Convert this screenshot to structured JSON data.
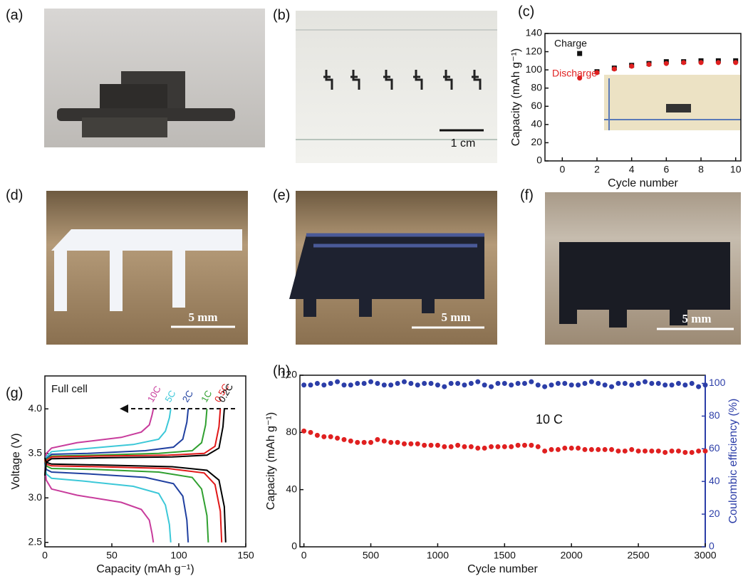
{
  "panels": [
    {
      "label": "(a)"
    },
    {
      "label": "(b)",
      "scale_bar": "1 cm"
    },
    {
      "label": "(d)",
      "scale_bar": "5 mm"
    },
    {
      "label": "(e)",
      "scale_bar": "5 mm"
    },
    {
      "label": "(f)",
      "scale_bar": "5 mm"
    }
  ],
  "chart_data": [
    {
      "type": "scatter",
      "panel": "(c)",
      "x_label": "Cycle number",
      "y_label": "Capacity (mAh g⁻¹)",
      "x": [
        1,
        2,
        3,
        4,
        5,
        6,
        7,
        8,
        9,
        10
      ],
      "series": [
        {
          "name": "Charge",
          "color": "#111111",
          "marker": "square",
          "values": [
            118,
            98,
            102,
            105,
            107,
            109,
            109,
            110,
            110,
            110
          ]
        },
        {
          "name": "Discharge",
          "color": "#e02020",
          "marker": "circle",
          "values": [
            91,
            97,
            101,
            104,
            106,
            107,
            108,
            108,
            108,
            108
          ]
        }
      ],
      "xlim": [
        -1,
        10.3
      ],
      "xticks": [
        0,
        2,
        4,
        6,
        8,
        10
      ],
      "ylim": [
        0,
        140
      ],
      "yticks": [
        0,
        20,
        40,
        60,
        80,
        100,
        120,
        140
      ]
    },
    {
      "type": "line",
      "panel": "(g)",
      "annotation": "Full cell",
      "x_label": "Capacity (mAh g⁻¹)",
      "y_label": "Voltage (V)",
      "series": [
        {
          "name": "10C",
          "color": "#c83c9c",
          "charge": {
            "x": [
              0,
              1,
              5,
              24,
              57,
              72,
              78,
              80,
              81
            ],
            "y": [
              3.25,
              3.5,
              3.56,
              3.62,
              3.68,
              3.74,
              3.82,
              3.93,
              4.0
            ]
          },
          "discharge": {
            "x": [
              0,
              1,
              5,
              24,
              57,
              72,
              78,
              80,
              81
            ],
            "y": [
              3.35,
              3.2,
              3.1,
              3.03,
              2.95,
              2.87,
              2.75,
              2.6,
              2.5
            ]
          }
        },
        {
          "name": "5C",
          "color": "#3cc8d8",
          "charge": {
            "x": [
              0,
              1,
              5,
              28,
              66,
              85,
              90,
              93,
              94
            ],
            "y": [
              3.25,
              3.46,
              3.52,
              3.55,
              3.6,
              3.66,
              3.75,
              3.9,
              4.0
            ]
          },
          "discharge": {
            "x": [
              0,
              1,
              5,
              28,
              66,
              85,
              90,
              93,
              94
            ],
            "y": [
              3.38,
              3.27,
              3.22,
              3.19,
              3.13,
              3.05,
              2.92,
              2.7,
              2.5
            ]
          }
        },
        {
          "name": "2C",
          "color": "#2040a0",
          "charge": {
            "x": [
              0,
              1,
              5,
              32,
              75,
              96,
              103,
              106,
              107
            ],
            "y": [
              3.25,
              3.44,
              3.49,
              3.5,
              3.53,
              3.57,
              3.66,
              3.85,
              4.0
            ]
          },
          "discharge": {
            "x": [
              0,
              1,
              5,
              32,
              75,
              96,
              103,
              106,
              107
            ],
            "y": [
              3.4,
              3.32,
              3.29,
              3.27,
              3.23,
              3.16,
              3.02,
              2.75,
              2.5
            ]
          }
        },
        {
          "name": "1C",
          "color": "#30a030",
          "charge": {
            "x": [
              0,
              1,
              5,
              37,
              85,
              110,
              117,
              120,
              121
            ],
            "y": [
              3.25,
              3.43,
              3.47,
              3.48,
              3.5,
              3.53,
              3.62,
              3.82,
              4.0
            ]
          },
          "discharge": {
            "x": [
              0,
              1,
              5,
              37,
              85,
              110,
              117,
              121,
              122
            ],
            "y": [
              3.42,
              3.36,
              3.33,
              3.32,
              3.29,
              3.23,
              3.1,
              2.8,
              2.5
            ]
          }
        },
        {
          "name": "0.5C",
          "color": "#e01818",
          "charge": {
            "x": [
              0,
              1,
              5,
              40,
              92,
              119,
              127,
              130,
              131
            ],
            "y": [
              3.25,
              3.42,
              3.46,
              3.47,
              3.48,
              3.5,
              3.58,
              3.8,
              4.0
            ]
          },
          "discharge": {
            "x": [
              0,
              1,
              5,
              40,
              92,
              119,
              127,
              131,
              132
            ],
            "y": [
              3.43,
              3.38,
              3.36,
              3.35,
              3.33,
              3.28,
              3.15,
              2.85,
              2.5
            ]
          }
        },
        {
          "name": "0.2C",
          "color": "#000000",
          "charge": {
            "x": [
              0,
              1,
              5,
              40,
              95,
              121,
              130,
              133,
              134
            ],
            "y": [
              3.25,
              3.4,
              3.44,
              3.45,
              3.46,
              3.48,
              3.56,
              3.8,
              4.0
            ]
          },
          "discharge": {
            "x": [
              0,
              1,
              5,
              40,
              95,
              121,
              130,
              134,
              135
            ],
            "y": [
              3.45,
              3.4,
              3.38,
              3.37,
              3.35,
              3.31,
              3.2,
              2.9,
              2.5
            ]
          }
        }
      ],
      "xlim": [
        0,
        150
      ],
      "xticks": [
        0,
        50,
        100,
        150
      ],
      "ylim": [
        2.45,
        4.37
      ],
      "yticks": [
        2.5,
        {
          "value": 3,
          "label": "3.0"
        },
        3.5,
        {
          "value": 4,
          "label": "4.0"
        }
      ]
    },
    {
      "type": "scatter",
      "panel": "(h)",
      "annotation": "10 C",
      "x_label": "Cycle number",
      "y_label": "Capacity (mAh g⁻¹)",
      "y2_label": "Coulombic efficiency (%)",
      "x": [
        0,
        50,
        100,
        150,
        200,
        250,
        300,
        350,
        400,
        450,
        500,
        550,
        600,
        650,
        700,
        750,
        800,
        850,
        900,
        950,
        1000,
        1050,
        1100,
        1150,
        1200,
        1250,
        1300,
        1350,
        1400,
        1450,
        1500,
        1550,
        1600,
        1650,
        1700,
        1750,
        1800,
        1850,
        1900,
        1950,
        2000,
        2050,
        2100,
        2150,
        2200,
        2250,
        2300,
        2350,
        2400,
        2450,
        2500,
        2550,
        2600,
        2650,
        2700,
        2750,
        2800,
        2850,
        2900,
        2950,
        3000
      ],
      "series": [
        {
          "color": "#e02020",
          "marker": "circle",
          "values": [
            81,
            80,
            78,
            77,
            77,
            76,
            75,
            74,
            73,
            73,
            73,
            75,
            74,
            73,
            73,
            72,
            72,
            72,
            71,
            71,
            71,
            70,
            70,
            71,
            70,
            70,
            69,
            69,
            70,
            70,
            70,
            70,
            71,
            71,
            71,
            70,
            67,
            68,
            68,
            69,
            69,
            69,
            68,
            68,
            68,
            68,
            68,
            67,
            67,
            68,
            67,
            67,
            67,
            67,
            66,
            67,
            67,
            66,
            66,
            67,
            67
          ]
        },
        {
          "color": "#2c3ea8",
          "marker": "circle",
          "axis": "y2",
          "values": [
            99,
            99,
            100,
            99,
            100,
            101,
            99,
            99,
            100,
            100,
            101,
            100,
            99,
            99,
            100,
            101,
            100,
            99,
            100,
            100,
            99,
            98,
            100,
            100,
            99,
            100,
            101,
            99,
            98,
            100,
            100,
            99,
            100,
            100,
            101,
            99,
            98,
            99,
            100,
            100,
            99,
            99,
            100,
            101,
            100,
            99,
            98,
            100,
            100,
            99,
            100,
            101,
            100,
            100,
            99,
            99,
            100,
            99,
            100,
            98,
            99
          ]
        }
      ],
      "xlim": [
        -30,
        3000
      ],
      "xticks": [
        0,
        500,
        1000,
        1500,
        2000,
        2500,
        3000
      ],
      "ylim": [
        0,
        120
      ],
      "yticks": [
        0,
        40,
        80,
        120
      ],
      "y2lim": [
        0,
        105
      ],
      "y2ticks": [
        0,
        20,
        40,
        60,
        80,
        100
      ]
    }
  ]
}
